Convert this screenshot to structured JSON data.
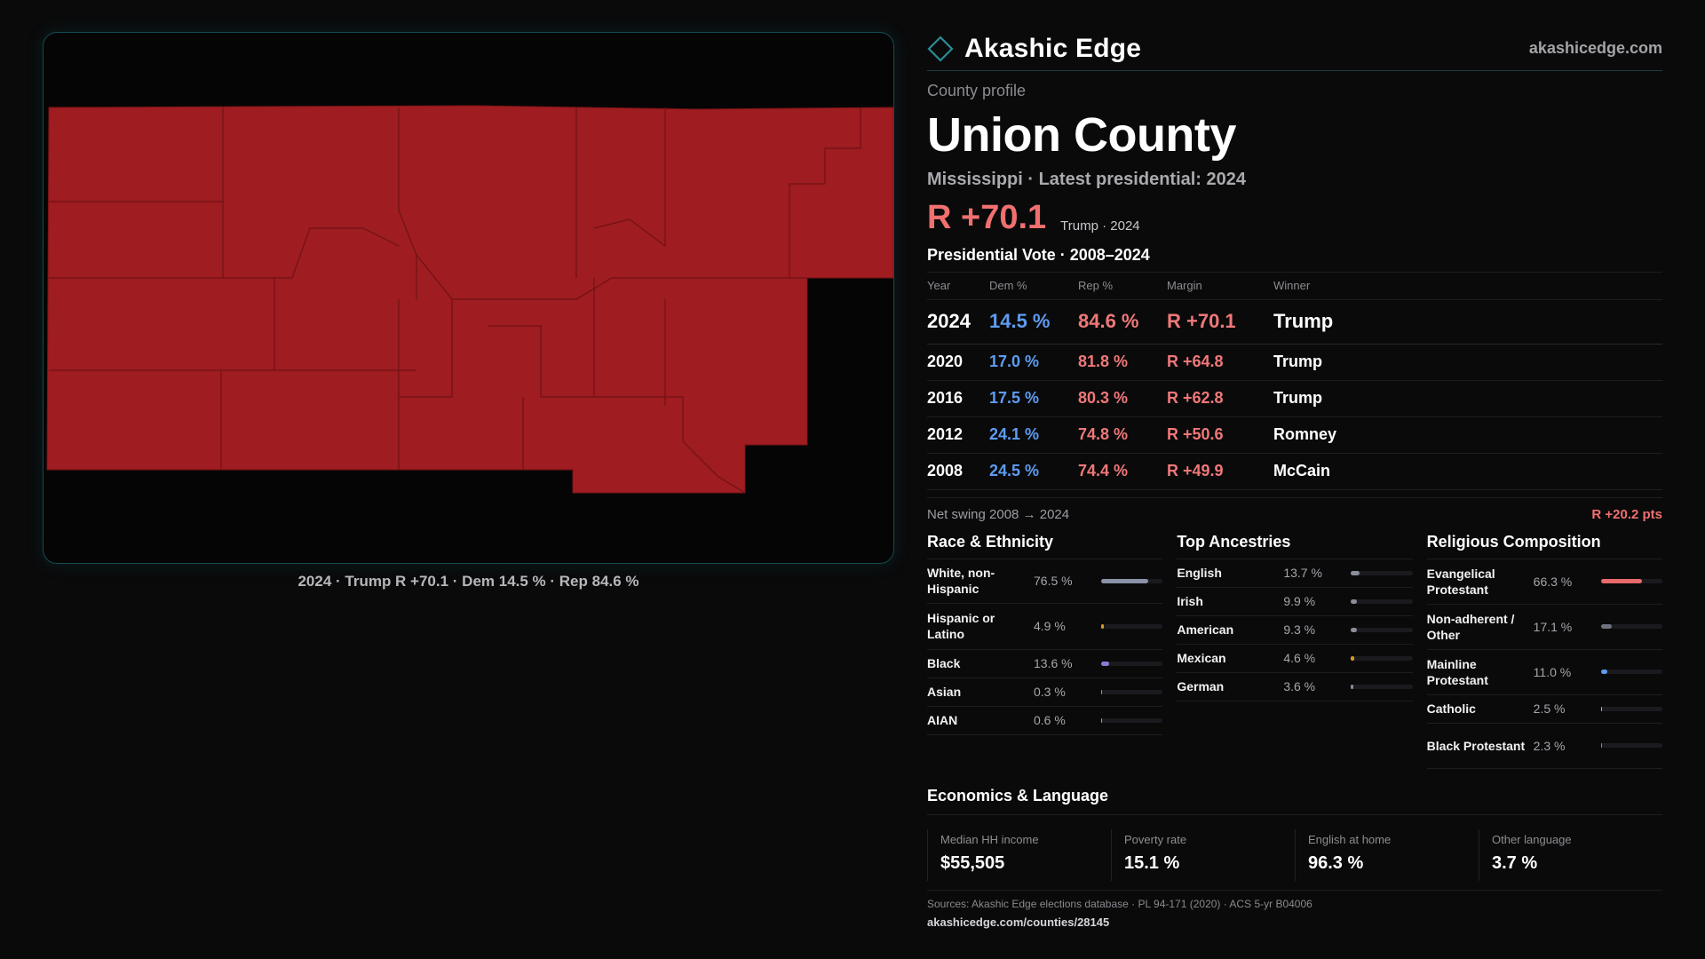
{
  "colors": {
    "rep": "#f07878",
    "dem": "#5e9cf0",
    "map_fill": "#9f1c20",
    "accent": "#2a8c96"
  },
  "map": {
    "caption": "2024 · Trump R +70.1 · Dem 14.5 % · Rep 84.6 %"
  },
  "brand": {
    "name": "Akashic Edge",
    "url": "akashicedge.com",
    "logo_icon": "diamond-icon"
  },
  "profile": {
    "kicker": "County profile",
    "title": "Union County",
    "subtitle": "Mississippi · Latest presidential: 2024",
    "headline_margin": "R +70.1",
    "headline_note": "Trump · 2024"
  },
  "votes": {
    "title": "Presidential Vote · 2008–2024",
    "headers": {
      "year": "Year",
      "dem": "Dem %",
      "rep": "Rep %",
      "margin": "Margin",
      "winner": "Winner"
    },
    "rows": [
      {
        "year": "2024",
        "dem": "14.5 %",
        "rep": "84.6 %",
        "margin": "R +70.1",
        "winner": "Trump"
      },
      {
        "year": "2020",
        "dem": "17.0 %",
        "rep": "81.8 %",
        "margin": "R +64.8",
        "winner": "Trump"
      },
      {
        "year": "2016",
        "dem": "17.5 %",
        "rep": "80.3 %",
        "margin": "R +62.8",
        "winner": "Trump"
      },
      {
        "year": "2012",
        "dem": "24.1 %",
        "rep": "74.8 %",
        "margin": "R +50.6",
        "winner": "Romney"
      },
      {
        "year": "2008",
        "dem": "24.5 %",
        "rep": "74.4 %",
        "margin": "R +49.9",
        "winner": "McCain"
      }
    ],
    "swing_label": "Net swing 2008 → 2024",
    "swing_value": "R +20.2 pts"
  },
  "race": {
    "title": "Race & Ethnicity",
    "items": [
      {
        "label": "White, non-Hispanic",
        "value": "76.5 %",
        "pct": 76.5,
        "color": "#8a93a8"
      },
      {
        "label": "Hispanic or Latino",
        "value": "4.9 %",
        "pct": 4.9,
        "color": "#d9982b"
      },
      {
        "label": "Black",
        "value": "13.6 %",
        "pct": 13.6,
        "color": "#8b7ad8"
      },
      {
        "label": "Asian",
        "value": "0.3 %",
        "pct": 0.3,
        "color": "#8a93a8"
      },
      {
        "label": "AIAN",
        "value": "0.6 %",
        "pct": 0.6,
        "color": "#d9982b"
      }
    ]
  },
  "ancestry": {
    "title": "Top Ancestries",
    "items": [
      {
        "label": "English",
        "value": "13.7 %",
        "pct": 13.7,
        "color": "#8a8e98"
      },
      {
        "label": "Irish",
        "value": "9.9 %",
        "pct": 9.9,
        "color": "#8a8e98"
      },
      {
        "label": "American",
        "value": "9.3 %",
        "pct": 9.3,
        "color": "#8a8e98"
      },
      {
        "label": "Mexican",
        "value": "4.6 %",
        "pct": 4.6,
        "color": "#d9982b"
      },
      {
        "label": "German",
        "value": "3.6 %",
        "pct": 3.6,
        "color": "#8a8e98"
      }
    ]
  },
  "religion": {
    "title": "Religious Composition",
    "items": [
      {
        "label": "Evangelical Protestant",
        "value": "66.3 %",
        "pct": 66.3,
        "color": "#e86a6a"
      },
      {
        "label": "Non-adherent / Other",
        "value": "17.1 %",
        "pct": 17.1,
        "color": "#6f7380"
      },
      {
        "label": "Mainline Protestant",
        "value": "11.0 %",
        "pct": 11.0,
        "color": "#5e9cf0"
      },
      {
        "label": "Catholic",
        "value": "2.5 %",
        "pct": 2.5,
        "color": "#d9b02b"
      },
      {
        "label": "Black Protestant",
        "value": "2.3 %",
        "pct": 2.3,
        "color": "#8b7ad8"
      }
    ]
  },
  "economics": {
    "title": "Economics & Language",
    "cells": [
      {
        "label": "Median HH income",
        "value": "$55,505"
      },
      {
        "label": "Poverty rate",
        "value": "15.1 %"
      },
      {
        "label": "English at home",
        "value": "96.3 %"
      },
      {
        "label": "Other language",
        "value": "3.7 %"
      }
    ]
  },
  "sources": {
    "text": "Sources: Akashic Edge elections database · PL 94-171 (2020) · ACS 5-yr B04006",
    "url": "akashicedge.com/counties/28145"
  }
}
